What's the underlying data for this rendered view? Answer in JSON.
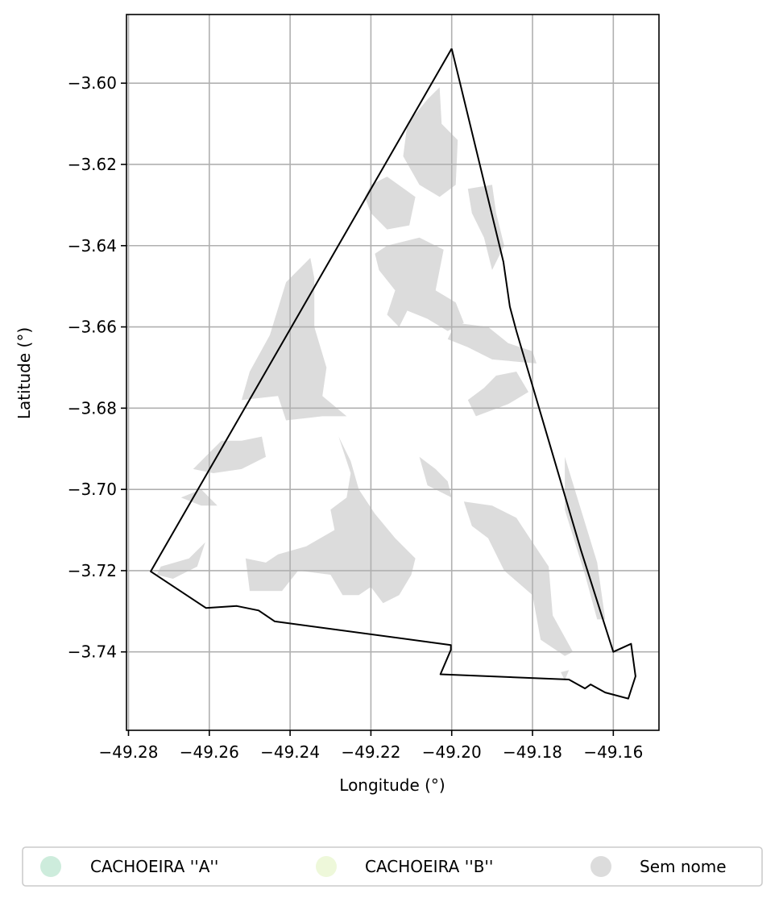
{
  "chart_data": {
    "type": "map",
    "title": "",
    "xlabel": "Longitude (°)",
    "ylabel": "Latitude (°)",
    "xlim": [
      -49.2805,
      -49.1487
    ],
    "ylim": [
      -3.7593,
      -3.5831
    ],
    "xticks": [
      -49.28,
      -49.26,
      -49.24,
      -49.22,
      -49.2,
      -49.18,
      -49.16
    ],
    "xtick_labels": [
      "−49.28",
      "−49.26",
      "−49.24",
      "−49.22",
      "−49.20",
      "−49.18",
      "−49.16"
    ],
    "yticks": [
      -3.6,
      -3.62,
      -3.64,
      -3.66,
      -3.68,
      -3.7,
      -3.72,
      -3.74
    ],
    "ytick_labels": [
      "−3.60",
      "−3.62",
      "−3.64",
      "−3.66",
      "−3.68",
      "−3.70",
      "−3.72",
      "−3.74"
    ],
    "grid": true,
    "legend_position": "bottom",
    "legend": [
      {
        "label": "CACHOEIRA ''A''",
        "color": "#cdecdc"
      },
      {
        "label": "CACHOEIRA ''B''",
        "color": "#eef8da"
      },
      {
        "label": "Sem nome",
        "color": "#dcdcdc"
      }
    ],
    "fill_color": "#dcdcdc",
    "boundary": [
      [
        -49.2,
        -3.5915
      ],
      [
        -49.1872,
        -3.644
      ],
      [
        -49.1856,
        -3.655
      ],
      [
        -49.184,
        -3.661
      ],
      [
        -49.176,
        -3.688
      ],
      [
        -49.168,
        -3.715
      ],
      [
        -49.16,
        -3.74
      ],
      [
        -49.1556,
        -3.738
      ],
      [
        -49.1545,
        -3.746
      ],
      [
        -49.1563,
        -3.7515
      ],
      [
        -49.162,
        -3.75
      ],
      [
        -49.1656,
        -3.748
      ],
      [
        -49.167,
        -3.749
      ],
      [
        -49.171,
        -3.7468
      ],
      [
        -49.2028,
        -3.7455
      ],
      [
        -49.2002,
        -3.7395
      ],
      [
        -49.2002,
        -3.7383
      ],
      [
        -49.2438,
        -3.7325
      ],
      [
        -49.2478,
        -3.7298
      ],
      [
        -49.2532,
        -3.7287
      ],
      [
        -49.2608,
        -3.7292
      ],
      [
        -49.2745,
        -3.7202
      ],
      [
        -49.2,
        -3.5915
      ]
    ],
    "regions": [
      {
        "name": "Sem nome",
        "points": [
          [
            -49.206,
            -3.604
          ],
          [
            -49.203,
            -3.601
          ],
          [
            -49.2025,
            -3.61
          ],
          [
            -49.1985,
            -3.614
          ],
          [
            -49.199,
            -3.625
          ],
          [
            -49.203,
            -3.628
          ],
          [
            -49.208,
            -3.625
          ],
          [
            -49.212,
            -3.618
          ],
          [
            -49.211,
            -3.61
          ]
        ]
      },
      {
        "name": "Sem nome",
        "points": [
          [
            -49.22,
            -3.625
          ],
          [
            -49.216,
            -3.623
          ],
          [
            -49.209,
            -3.628
          ],
          [
            -49.2105,
            -3.635
          ],
          [
            -49.216,
            -3.636
          ],
          [
            -49.22,
            -3.632
          ],
          [
            -49.2215,
            -3.628
          ]
        ]
      },
      {
        "name": "Sem nome",
        "points": [
          [
            -49.216,
            -3.64
          ],
          [
            -49.208,
            -3.638
          ],
          [
            -49.202,
            -3.641
          ],
          [
            -49.204,
            -3.651
          ],
          [
            -49.199,
            -3.654
          ],
          [
            -49.197,
            -3.659
          ],
          [
            -49.201,
            -3.661
          ],
          [
            -49.206,
            -3.658
          ],
          [
            -49.211,
            -3.656
          ],
          [
            -49.213,
            -3.66
          ],
          [
            -49.216,
            -3.657
          ],
          [
            -49.214,
            -3.651
          ],
          [
            -49.218,
            -3.646
          ],
          [
            -49.219,
            -3.642
          ]
        ]
      },
      {
        "name": "Sem nome",
        "points": [
          [
            -49.196,
            -3.626
          ],
          [
            -49.19,
            -3.625
          ],
          [
            -49.189,
            -3.632
          ],
          [
            -49.187,
            -3.64
          ],
          [
            -49.19,
            -3.646
          ],
          [
            -49.192,
            -3.638
          ],
          [
            -49.195,
            -3.632
          ]
        ]
      },
      {
        "name": "Sem nome",
        "points": [
          [
            -49.199,
            -3.659
          ],
          [
            -49.191,
            -3.66
          ],
          [
            -49.186,
            -3.664
          ],
          [
            -49.18,
            -3.666
          ],
          [
            -49.179,
            -3.669
          ],
          [
            -49.19,
            -3.668
          ],
          [
            -49.196,
            -3.665
          ],
          [
            -49.201,
            -3.663
          ]
        ]
      },
      {
        "name": "Sem nome",
        "points": [
          [
            -49.189,
            -3.672
          ],
          [
            -49.184,
            -3.671
          ],
          [
            -49.181,
            -3.676
          ],
          [
            -49.186,
            -3.679
          ],
          [
            -49.194,
            -3.682
          ],
          [
            -49.196,
            -3.678
          ],
          [
            -49.192,
            -3.675
          ]
        ]
      },
      {
        "name": "Sem nome",
        "points": [
          [
            -49.235,
            -3.643
          ],
          [
            -49.241,
            -3.649
          ],
          [
            -49.245,
            -3.662
          ],
          [
            -49.25,
            -3.671
          ],
          [
            -49.252,
            -3.678
          ],
          [
            -49.243,
            -3.677
          ],
          [
            -49.241,
            -3.683
          ],
          [
            -49.232,
            -3.682
          ],
          [
            -49.226,
            -3.682
          ],
          [
            -49.232,
            -3.677
          ],
          [
            -49.231,
            -3.67
          ],
          [
            -49.234,
            -3.66
          ],
          [
            -49.234,
            -3.648
          ]
        ]
      },
      {
        "name": "Sem nome",
        "points": [
          [
            -49.257,
            -3.688
          ],
          [
            -49.252,
            -3.688
          ],
          [
            -49.247,
            -3.687
          ],
          [
            -49.246,
            -3.692
          ],
          [
            -49.252,
            -3.695
          ],
          [
            -49.259,
            -3.696
          ],
          [
            -49.264,
            -3.695
          ]
        ]
      },
      {
        "name": "Sem nome",
        "points": [
          [
            -49.262,
            -3.7
          ],
          [
            -49.267,
            -3.702
          ],
          [
            -49.262,
            -3.704
          ],
          [
            -49.258,
            -3.704
          ]
        ]
      },
      {
        "name": "Sem nome",
        "points": [
          [
            -49.261,
            -3.713
          ],
          [
            -49.265,
            -3.717
          ],
          [
            -49.272,
            -3.719
          ],
          [
            -49.273,
            -3.721
          ],
          [
            -49.269,
            -3.722
          ],
          [
            -49.263,
            -3.719
          ]
        ]
      },
      {
        "name": "Sem nome",
        "points": [
          [
            -49.228,
            -3.687
          ],
          [
            -49.225,
            -3.696
          ],
          [
            -49.226,
            -3.702
          ],
          [
            -49.23,
            -3.705
          ],
          [
            -49.229,
            -3.71
          ],
          [
            -49.236,
            -3.714
          ],
          [
            -49.243,
            -3.716
          ],
          [
            -49.246,
            -3.718
          ],
          [
            -49.251,
            -3.717
          ],
          [
            -49.25,
            -3.725
          ],
          [
            -49.242,
            -3.725
          ],
          [
            -49.238,
            -3.72
          ],
          [
            -49.23,
            -3.721
          ],
          [
            -49.227,
            -3.726
          ],
          [
            -49.223,
            -3.726
          ],
          [
            -49.22,
            -3.724
          ],
          [
            -49.217,
            -3.728
          ],
          [
            -49.213,
            -3.726
          ],
          [
            -49.21,
            -3.721
          ],
          [
            -49.209,
            -3.717
          ],
          [
            -49.214,
            -3.712
          ],
          [
            -49.219,
            -3.706
          ],
          [
            -49.223,
            -3.7
          ],
          [
            -49.225,
            -3.693
          ]
        ]
      },
      {
        "name": "Sem nome",
        "points": [
          [
            -49.2,
            -3.702
          ],
          [
            -49.206,
            -3.699
          ],
          [
            -49.208,
            -3.692
          ],
          [
            -49.204,
            -3.695
          ],
          [
            -49.201,
            -3.698
          ]
        ]
      },
      {
        "name": "Sem nome",
        "points": [
          [
            -49.197,
            -3.703
          ],
          [
            -49.19,
            -3.704
          ],
          [
            -49.184,
            -3.707
          ],
          [
            -49.18,
            -3.713
          ],
          [
            -49.176,
            -3.719
          ],
          [
            -49.175,
            -3.731
          ],
          [
            -49.17,
            -3.74
          ],
          [
            -49.172,
            -3.741
          ],
          [
            -49.178,
            -3.737
          ],
          [
            -49.18,
            -3.726
          ],
          [
            -49.187,
            -3.72
          ],
          [
            -49.191,
            -3.712
          ],
          [
            -49.195,
            -3.709
          ]
        ]
      },
      {
        "name": "Sem nome",
        "points": [
          [
            -49.172,
            -3.692
          ],
          [
            -49.164,
            -3.718
          ],
          [
            -49.162,
            -3.732
          ],
          [
            -49.164,
            -3.732
          ],
          [
            -49.167,
            -3.721
          ],
          [
            -49.172,
            -3.705
          ]
        ]
      },
      {
        "name": "Sem nome",
        "points": [
          [
            -49.173,
            -3.745
          ],
          [
            -49.171,
            -3.7445
          ],
          [
            -49.172,
            -3.747
          ]
        ]
      }
    ]
  }
}
